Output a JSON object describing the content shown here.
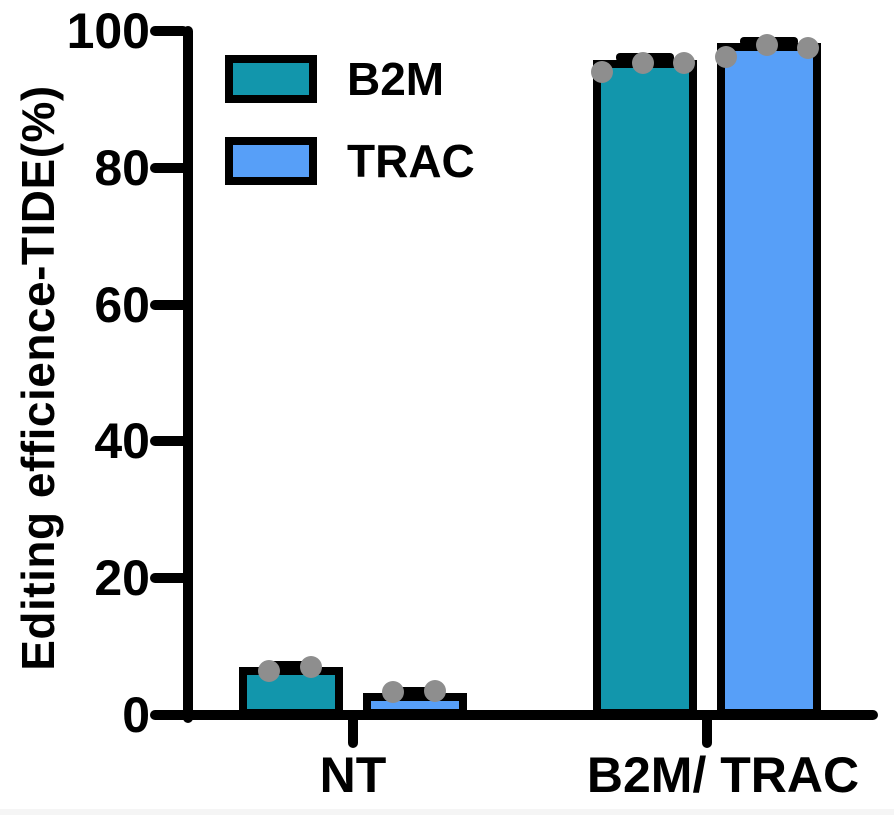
{
  "chart_data": {
    "type": "bar",
    "title": "",
    "ylabel": "Editing efficience-TIDE(%)",
    "xlabel": "",
    "ylim": [
      0,
      100
    ],
    "yticks": [
      0,
      20,
      40,
      60,
      80,
      100
    ],
    "categories": [
      "NT",
      "B2M/ TRAC"
    ],
    "grid": false,
    "legend_position": "upper-left",
    "bar_edge_color": "#000000",
    "point_color": "#8E8E8E",
    "axis_color": "#000000",
    "series": [
      {
        "name": "B2M",
        "color": "#1296AC",
        "values": [
          6.4,
          95.2
        ],
        "sem": [
          0.9,
          0.9
        ],
        "points": [
          [
            6.4,
            7.0
          ],
          [
            94.0,
            95.3,
            95.3
          ]
        ]
      },
      {
        "name": "TRAC",
        "color": "#579FF8",
        "values": [
          2.7,
          97.6
        ],
        "sem": [
          0.8,
          0.8
        ],
        "points": [
          [
            3.4,
            3.5
          ],
          [
            96.2,
            98.0,
            97.5
          ]
        ]
      }
    ]
  }
}
